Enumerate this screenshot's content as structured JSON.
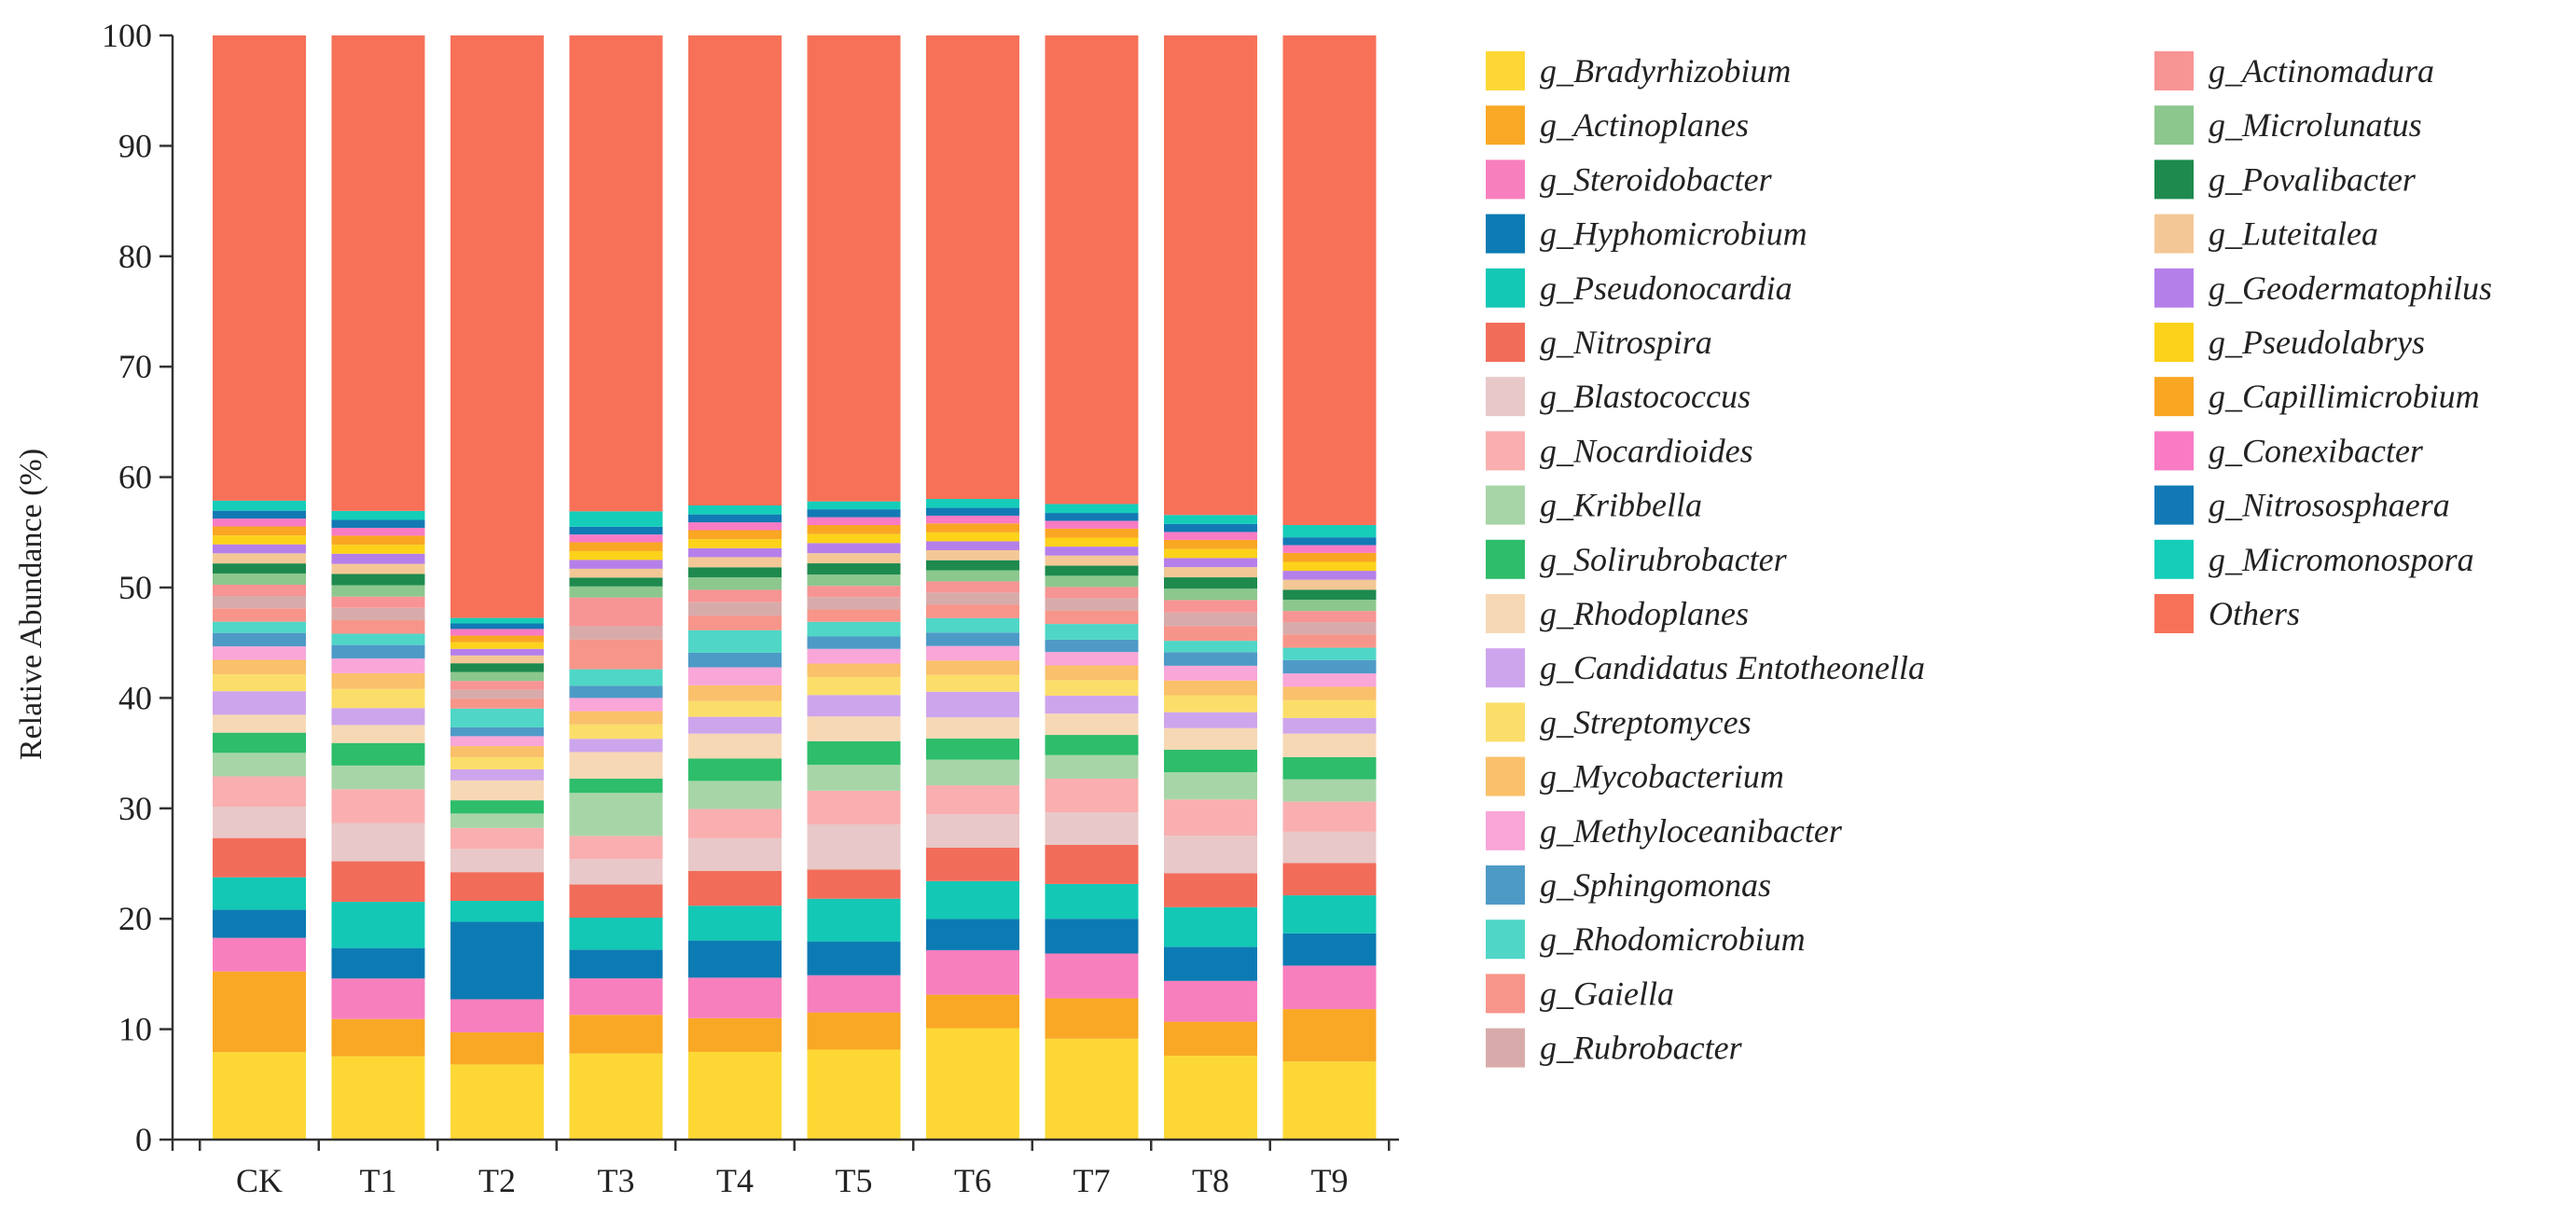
{
  "chart_data": {
    "type": "bar",
    "stacked": true,
    "title": "",
    "xlabel": "",
    "ylabel": "Relative Abundance (%)",
    "ylim": [
      0,
      100
    ],
    "yticks": [
      0,
      10,
      20,
      30,
      40,
      50,
      60,
      70,
      80,
      90,
      100
    ],
    "grid": false,
    "legend_position": "right",
    "categories": [
      "CK",
      "T1",
      "T2",
      "T3",
      "T4",
      "T5",
      "T6",
      "T7",
      "T8",
      "T9"
    ],
    "series": [
      {
        "name": "g_Bradyrhizobium",
        "color": "#FDD835",
        "values": [
          7.8,
          7.4,
          6.8,
          7.8,
          7.8,
          8.0,
          10.0,
          9.0,
          7.4,
          7.0
        ]
      },
      {
        "name": "g_Actinoplanes",
        "color": "#F9A825",
        "values": [
          7.2,
          3.3,
          2.9,
          3.5,
          3.0,
          3.3,
          3.0,
          3.6,
          3.0,
          4.7
        ]
      },
      {
        "name": "g_Steroidobacter",
        "color": "#F77FBE",
        "values": [
          3.0,
          3.6,
          3.0,
          3.3,
          3.6,
          3.3,
          4.0,
          4.0,
          3.6,
          3.9
        ]
      },
      {
        "name": "g_Hyphomicrobium",
        "color": "#0C7BB3",
        "values": [
          2.5,
          2.7,
          7.0,
          2.6,
          3.3,
          3.0,
          2.8,
          3.1,
          3.0,
          2.9
        ]
      },
      {
        "name": "g_Pseudonocardia",
        "color": "#13C8B5",
        "values": [
          2.9,
          4.1,
          1.9,
          2.9,
          3.1,
          3.8,
          3.4,
          3.1,
          3.5,
          3.4
        ]
      },
      {
        "name": "g_Nitrospira",
        "color": "#F26C5A",
        "values": [
          3.5,
          3.6,
          2.6,
          3.0,
          3.1,
          2.6,
          3.0,
          3.5,
          3.0,
          2.9
        ]
      },
      {
        "name": "g_Blastococcus",
        "color": "#E8C8C8",
        "values": [
          2.8,
          3.4,
          2.1,
          2.3,
          2.9,
          4.0,
          3.0,
          2.9,
          3.3,
          2.8
        ]
      },
      {
        "name": "g_Nocardioides",
        "color": "#F9AFAF",
        "values": [
          2.7,
          3.0,
          1.9,
          2.1,
          2.6,
          3.0,
          2.6,
          3.0,
          3.2,
          2.7
        ]
      },
      {
        "name": "g_Kribbella",
        "color": "#A8D5A8",
        "values": [
          2.1,
          2.1,
          1.3,
          3.9,
          2.5,
          2.3,
          2.3,
          2.1,
          2.4,
          2.0
        ]
      },
      {
        "name": "g_Solirubrobacter",
        "color": "#2EBD6B",
        "values": [
          1.8,
          2.0,
          1.2,
          1.3,
          2.0,
          2.1,
          1.9,
          1.8,
          2.0,
          2.0
        ]
      },
      {
        "name": "g_Rhodoplanes",
        "color": "#F7D8B5",
        "values": [
          1.6,
          1.6,
          1.8,
          2.4,
          2.2,
          2.2,
          1.9,
          1.9,
          1.9,
          2.1
        ]
      },
      {
        "name": "g_Candidatus Entotheonella",
        "color": "#CDA5EC",
        "values": [
          2.1,
          1.5,
          1.0,
          1.2,
          1.5,
          1.9,
          2.3,
          1.6,
          1.4,
          1.4
        ]
      },
      {
        "name": "g_Streptomyces",
        "color": "#FBDE6A",
        "values": [
          1.5,
          1.7,
          1.1,
          1.3,
          1.4,
          1.6,
          1.5,
          1.4,
          1.5,
          1.6
        ]
      },
      {
        "name": "g_Mycobacterium",
        "color": "#FAC06A",
        "values": [
          1.3,
          1.4,
          1.0,
          1.2,
          1.4,
          1.2,
          1.3,
          1.3,
          1.3,
          1.2
        ]
      },
      {
        "name": "g_Methyloceanibacter",
        "color": "#F9A6D8",
        "values": [
          1.2,
          1.3,
          0.9,
          1.2,
          1.6,
          1.3,
          1.3,
          1.2,
          1.3,
          1.2
        ]
      },
      {
        "name": "g_Sphingomonas",
        "color": "#4E9AC7",
        "values": [
          1.2,
          1.2,
          0.8,
          1.1,
          1.3,
          1.1,
          1.2,
          1.1,
          1.2,
          1.2
        ]
      },
      {
        "name": "g_Rhodomicrobium",
        "color": "#4FD6C6",
        "values": [
          1.0,
          1.0,
          1.7,
          1.5,
          2.0,
          1.3,
          1.3,
          1.4,
          1.0,
          1.1
        ]
      },
      {
        "name": "g_Gaiella",
        "color": "#F7958A",
        "values": [
          1.2,
          1.2,
          0.9,
          2.7,
          1.3,
          1.1,
          1.2,
          1.2,
          1.3,
          1.2
        ]
      },
      {
        "name": "g_Rubrobacter",
        "color": "#D8ABAB",
        "values": [
          1.1,
          1.1,
          0.8,
          1.2,
          1.2,
          1.1,
          1.1,
          1.1,
          1.2,
          1.1
        ]
      },
      {
        "name": "g_Actinomadura",
        "color": "#F79494",
        "values": [
          1.0,
          1.0,
          0.8,
          2.6,
          1.1,
          1.0,
          1.0,
          1.0,
          1.1,
          1.0
        ]
      },
      {
        "name": "g_Microlunatus",
        "color": "#8CC78E",
        "values": [
          1.0,
          1.0,
          0.8,
          1.0,
          1.1,
          1.0,
          1.0,
          1.0,
          1.0,
          1.0
        ]
      },
      {
        "name": "g_Povalibacter",
        "color": "#1E8A4E",
        "values": [
          0.9,
          1.0,
          0.8,
          0.8,
          0.9,
          1.0,
          0.9,
          0.9,
          1.0,
          0.9
        ]
      },
      {
        "name": "g_Luteitalea",
        "color": "#F3C896",
        "values": [
          0.9,
          0.9,
          0.7,
          0.8,
          0.9,
          0.9,
          0.9,
          0.9,
          0.9,
          0.9
        ]
      },
      {
        "name": "g_Geodermatophilus",
        "color": "#B57FEA",
        "values": [
          0.8,
          0.9,
          0.6,
          0.8,
          0.8,
          0.9,
          0.8,
          0.8,
          0.8,
          0.8
        ]
      },
      {
        "name": "g_Pseudolabrys",
        "color": "#FCD21A",
        "values": [
          0.8,
          0.8,
          0.6,
          0.8,
          0.8,
          0.8,
          0.8,
          0.8,
          0.8,
          0.8
        ]
      },
      {
        "name": "g_Capillimicrobium",
        "color": "#F9A623",
        "values": [
          0.8,
          0.8,
          0.6,
          0.8,
          0.8,
          0.8,
          0.8,
          0.8,
          0.8,
          0.8
        ]
      },
      {
        "name": "g_Conexibacter",
        "color": "#F87BC4",
        "values": [
          0.7,
          0.7,
          0.6,
          0.7,
          0.7,
          0.7,
          0.7,
          0.7,
          0.7,
          0.7
        ]
      },
      {
        "name": "g_Nitrososphaera",
        "color": "#1279B5",
        "values": [
          0.7,
          0.7,
          0.5,
          0.7,
          0.7,
          0.7,
          0.7,
          0.7,
          0.7,
          0.7
        ]
      },
      {
        "name": "g_Micromonospora",
        "color": "#15CDB8",
        "values": [
          0.9,
          0.8,
          0.5,
          1.4,
          0.8,
          0.7,
          0.8,
          0.8,
          0.8,
          1.1
        ]
      },
      {
        "name": "Others",
        "color": "#F77159",
        "values": [
          41.5,
          42.2,
          52.7,
          43.1,
          41.8,
          41.4,
          41.6,
          41.8,
          42.3,
          43.9
        ]
      }
    ]
  }
}
